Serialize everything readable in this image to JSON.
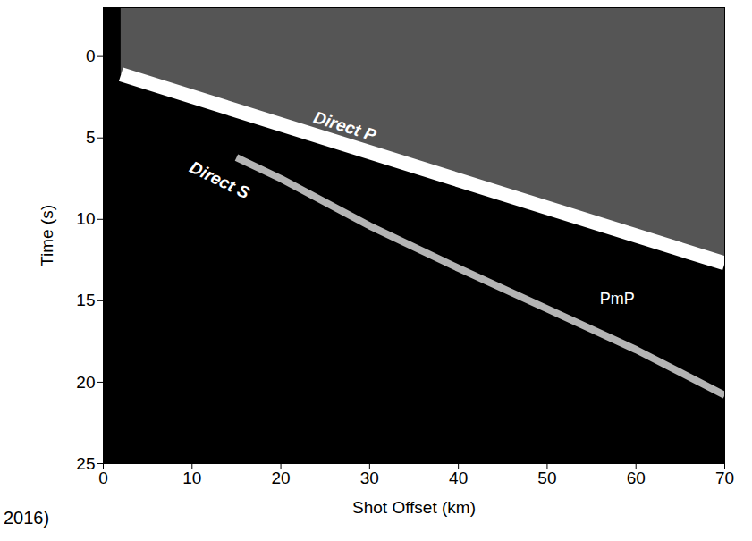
{
  "chart_data": {
    "type": "record_section",
    "caption": "2016)",
    "x_label": "Shot Offset (km)",
    "y_label": "Time (s)",
    "xlim": [
      0,
      70
    ],
    "xticks": [
      0,
      10,
      20,
      30,
      40,
      50,
      60,
      70
    ],
    "ylim": [
      -3,
      25
    ],
    "yticks": [
      0,
      5,
      10,
      15,
      20,
      25
    ],
    "series": [
      {
        "name": "Direct P",
        "color": "#ffffff",
        "x": [
          2,
          70
        ],
        "values": [
          1.1,
          12.7
        ]
      },
      {
        "name": "Direct S",
        "color": "#b4b4b4",
        "x": [
          15,
          20,
          30,
          40,
          50,
          60,
          70
        ],
        "values": [
          6.2,
          7.5,
          10.4,
          13.0,
          15.5,
          18.0,
          20.8
        ]
      }
    ],
    "annotations": [
      {
        "text": "Direct P",
        "x": 27.2,
        "y": 4.3
      },
      {
        "text": "Direct S",
        "x": 13.1,
        "y": 7.6
      },
      {
        "text": "PmP",
        "x": 57.9,
        "y": 14.9
      }
    ]
  }
}
